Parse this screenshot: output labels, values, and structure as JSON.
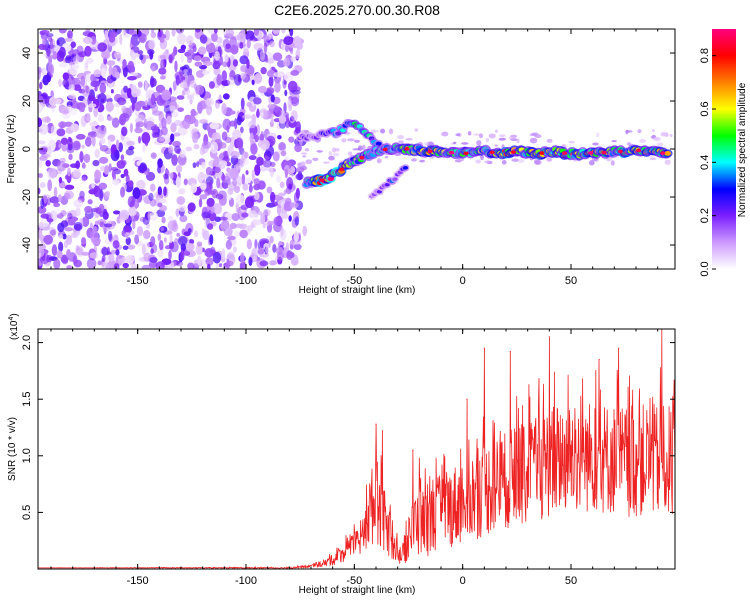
{
  "title": "C2E6.2025.270.00.30.R08",
  "chart_data": [
    {
      "type": "heatmap",
      "title": "C2E6.2025.270.00.30.R08",
      "xlabel": "Height of straight line (km)",
      "ylabel": "Frequency (Hz)",
      "xlim": [
        -196,
        98
      ],
      "ylim": [
        -50,
        50
      ],
      "xticks": [
        "-150",
        "-100",
        "-50",
        "0",
        "50"
      ],
      "xtick_values": [
        -150,
        -100,
        -50,
        0,
        50
      ],
      "yticks": [
        "-40",
        "-20",
        "0",
        "20",
        "40"
      ],
      "ytick_values": [
        -40,
        -20,
        0,
        20,
        40
      ],
      "noise_region_x": [
        -196,
        -75
      ],
      "noise_density": "high",
      "main_trace": {
        "x": [
          -72,
          -65,
          -60,
          -55,
          -50,
          -45,
          -40,
          -35,
          -30,
          -25,
          -20,
          -15,
          -10,
          -5,
          0,
          5,
          10,
          15,
          20,
          25,
          30,
          35,
          40,
          45,
          50,
          55,
          60,
          65,
          70,
          75,
          80,
          85,
          90,
          95
        ],
        "y": [
          -14,
          -13,
          -11,
          -8,
          -5,
          -3,
          -1,
          0,
          0.5,
          0,
          -0.5,
          -1,
          -1,
          -1.5,
          -2,
          -1.5,
          -1,
          -1.5,
          -2,
          -1,
          -1.5,
          -2,
          -1,
          -1.5,
          -2,
          -2,
          -1.5,
          -1.5,
          -1,
          -1,
          -0.5,
          -1,
          -1.5,
          -2
        ],
        "amplitude": [
          0.4,
          0.8,
          0.9,
          0.7,
          0.5,
          0.5,
          0.4,
          0.4,
          0.5,
          0.6,
          0.6,
          0.7,
          0.6,
          0.5,
          0.5,
          0.6,
          0.5,
          0.6,
          0.7,
          0.6,
          0.6,
          0.7,
          0.6,
          0.7,
          0.7,
          0.6,
          0.7,
          0.6,
          0.6,
          0.7,
          0.6,
          0.6,
          0.6,
          0.6
        ]
      },
      "upper_branch": {
        "x": [
          -75,
          -65,
          -58,
          -53,
          -50,
          -46,
          -42,
          -38
        ],
        "y": [
          5,
          6,
          7,
          10,
          11,
          8,
          4,
          1
        ],
        "amplitude": [
          0.2,
          0.25,
          0.35,
          0.5,
          0.55,
          0.45,
          0.4,
          0.35
        ]
      },
      "lower_branch": {
        "x": [
          -42,
          -38,
          -34,
          -30,
          -26
        ],
        "y": [
          -19,
          -17,
          -14,
          -11,
          -8
        ],
        "amplitude": [
          0.2,
          0.25,
          0.3,
          0.3,
          0.35
        ]
      },
      "colorbar": {
        "label": "Normalized spectral amplitude",
        "range": [
          0,
          0.9
        ],
        "ticks": [
          "0.0",
          "0.2",
          "0.4",
          "0.6",
          "0.8"
        ],
        "tick_values": [
          0,
          0.2,
          0.4,
          0.6,
          0.8
        ],
        "colors": [
          "#ffffff",
          "#cc99ff",
          "#7b1fff",
          "#0000ff",
          "#00ffff",
          "#00ff00",
          "#ffff00",
          "#ff8000",
          "#ff0000",
          "#ff0080"
        ]
      }
    },
    {
      "type": "line",
      "xlabel": "Height of straight line (km)",
      "ylabel": "SNR (10 * v/v)",
      "yscale_note": "(x10^4)",
      "yscale_base": "(x10",
      "yscale_exp": "4",
      "xlim": [
        -196,
        98
      ],
      "ylim": [
        0,
        2.12
      ],
      "xticks": [
        "-150",
        "-100",
        "-50",
        "0",
        "50"
      ],
      "xtick_values": [
        -150,
        -100,
        -50,
        0,
        50
      ],
      "yticks": [
        "0.5",
        "1.0",
        "1.5",
        "2.0"
      ],
      "ytick_values": [
        0.5,
        1.0,
        1.5,
        2.0
      ],
      "color": "#ee2222",
      "envelope": {
        "x": [
          -196,
          -80,
          -72,
          -65,
          -60,
          -55,
          -50,
          -46,
          -44,
          -42,
          -40,
          -38,
          -35,
          -32,
          -30,
          -28,
          -25,
          -22,
          -20,
          -18,
          -15,
          -12,
          -10,
          -5,
          0,
          5,
          10,
          15,
          20,
          25,
          30,
          35,
          40,
          45,
          50,
          55,
          60,
          65,
          70,
          75,
          80,
          85,
          90,
          95,
          98
        ],
        "mean": [
          0.01,
          0.01,
          0.02,
          0.04,
          0.08,
          0.14,
          0.2,
          0.3,
          0.45,
          0.55,
          0.6,
          0.55,
          0.35,
          0.2,
          0.15,
          0.1,
          0.25,
          0.4,
          0.45,
          0.4,
          0.42,
          0.48,
          0.52,
          0.55,
          0.6,
          0.65,
          0.7,
          0.75,
          0.78,
          0.82,
          0.85,
          0.88,
          0.95,
          0.98,
          1.0,
          0.98,
          1.0,
          0.98,
          0.97,
          0.95,
          0.95,
          0.97,
          0.95,
          0.95,
          0.95
        ],
        "spread": [
          0.0,
          0.005,
          0.01,
          0.02,
          0.05,
          0.08,
          0.12,
          0.18,
          0.3,
          0.35,
          0.4,
          0.35,
          0.25,
          0.12,
          0.1,
          0.08,
          0.18,
          0.3,
          0.35,
          0.3,
          0.3,
          0.32,
          0.34,
          0.36,
          0.38,
          0.4,
          0.42,
          0.42,
          0.44,
          0.45,
          0.46,
          0.48,
          0.5,
          0.5,
          0.5,
          0.5,
          0.5,
          0.5,
          0.5,
          0.5,
          0.5,
          0.5,
          0.5,
          0.5,
          0.5
        ]
      },
      "notable_peaks": [
        {
          "x": -40,
          "y": 1.28
        },
        {
          "x": -37,
          "y": 1.22
        },
        {
          "x": -23,
          "y": 1.05
        },
        {
          "x": 2,
          "y": 1.5
        },
        {
          "x": 10,
          "y": 1.95
        },
        {
          "x": 22,
          "y": 1.92
        },
        {
          "x": 40,
          "y": 2.05
        },
        {
          "x": 63,
          "y": 1.85
        },
        {
          "x": 72,
          "y": 1.95
        },
        {
          "x": 92,
          "y": 2.12
        }
      ]
    }
  ]
}
